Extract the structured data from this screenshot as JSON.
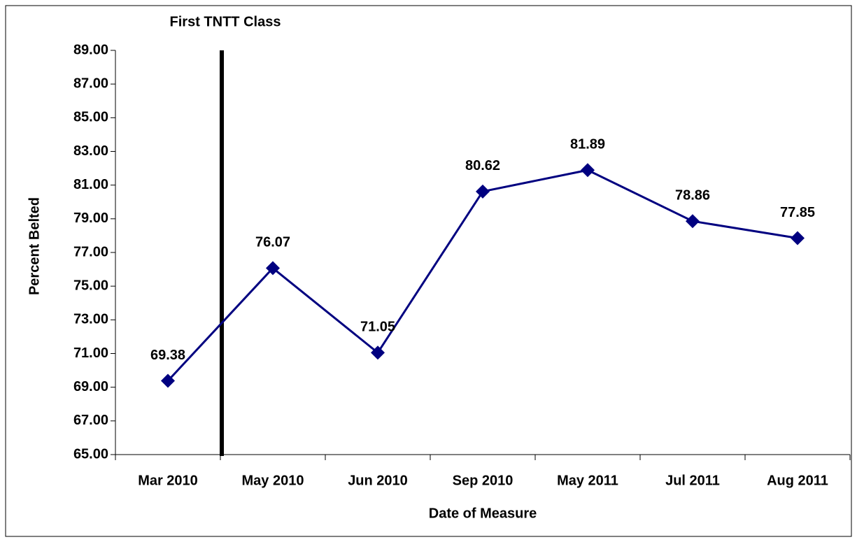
{
  "chart_data": {
    "type": "line",
    "x_label": "Date of Measure",
    "y_label": "Percent Belted",
    "annotations": [
      {
        "text": "First TNTT Class"
      }
    ],
    "categories": [
      "Mar 2010",
      "May 2010",
      "Jun 2010",
      "Sep 2010",
      "May 2011",
      "Jul 2011",
      "Aug 2011"
    ],
    "series": [
      {
        "name": "Percent Belted",
        "color": "#000080",
        "values": [
          69.38,
          76.07,
          71.05,
          80.62,
          81.89,
          78.86,
          77.85
        ]
      }
    ],
    "ylim": [
      65,
      89
    ],
    "yticks": [
      {
        "value": 65,
        "label": "65.00"
      },
      {
        "value": 67,
        "label": "67.00"
      },
      {
        "value": 69,
        "label": "69.00"
      },
      {
        "value": 71,
        "label": "71.00"
      },
      {
        "value": 73,
        "label": "73.00"
      },
      {
        "value": 75,
        "label": "75.00"
      },
      {
        "value": 77,
        "label": "77.00"
      },
      {
        "value": 79,
        "label": "79.00"
      },
      {
        "value": 81,
        "label": "81.00"
      },
      {
        "value": 83,
        "label": "83.00"
      },
      {
        "value": 85,
        "label": "85.00"
      },
      {
        "value": 87,
        "label": "87.00"
      },
      {
        "value": 89,
        "label": "89.00"
      }
    ],
    "grid": false,
    "legend": false
  }
}
